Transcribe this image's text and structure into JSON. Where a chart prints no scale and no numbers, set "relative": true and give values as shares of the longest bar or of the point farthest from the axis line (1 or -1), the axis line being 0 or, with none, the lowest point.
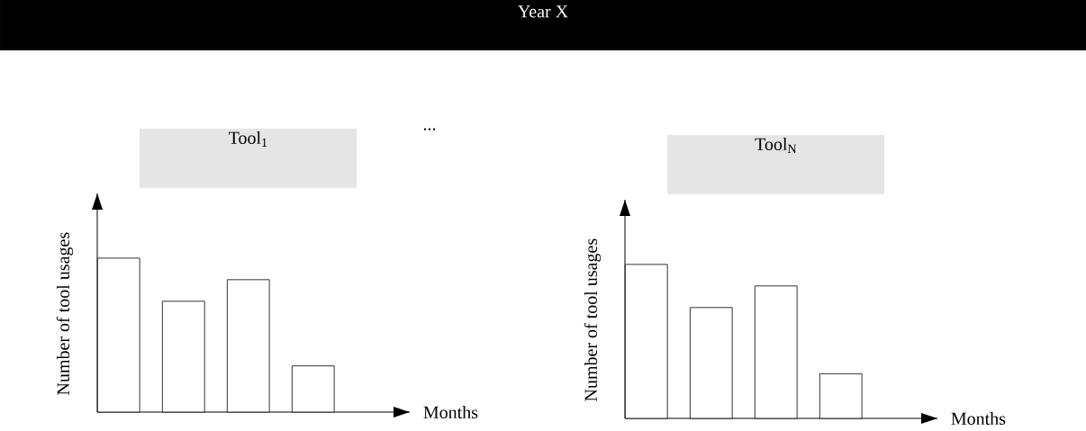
{
  "chart_data": [
    {
      "type": "other",
      "title": "Year X",
      "annotations": [
        "..."
      ]
    },
    {
      "type": "bar",
      "title": "Tool$_{1}$",
      "xlabel": "Months",
      "ylabel": "Number of tool usages",
      "categories": [
        null,
        null,
        null,
        null
      ],
      "values": [
        1,
        0.72,
        0.86,
        0.3
      ],
      "color": "#ffffff",
      "relative": true
    },
    {
      "type": "bar",
      "title": "Tool$_{N}$",
      "xlabel": "Months",
      "ylabel": "Number of tool usages",
      "categories": [
        null,
        null,
        null,
        null
      ],
      "values": [
        1,
        0.72,
        0.86,
        0.29
      ],
      "color": "#ffffff",
      "relative": true
    }
  ]
}
